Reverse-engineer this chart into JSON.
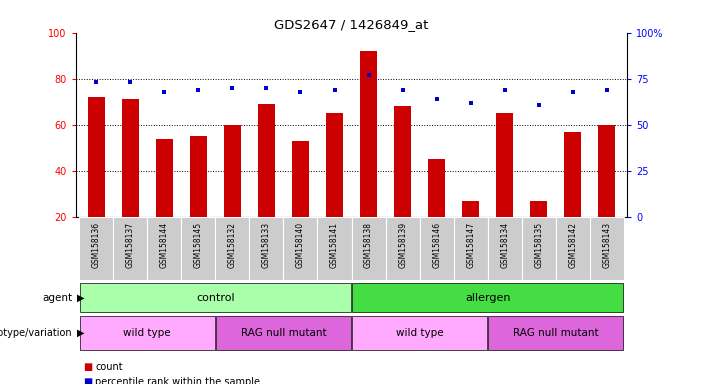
{
  "title": "GDS2647 / 1426849_at",
  "samples": [
    "GSM158136",
    "GSM158137",
    "GSM158144",
    "GSM158145",
    "GSM158132",
    "GSM158133",
    "GSM158140",
    "GSM158141",
    "GSM158138",
    "GSM158139",
    "GSM158146",
    "GSM158147",
    "GSM158134",
    "GSM158135",
    "GSM158142",
    "GSM158143"
  ],
  "counts": [
    72,
    71,
    54,
    55,
    60,
    69,
    53,
    65,
    92,
    68,
    45,
    27,
    65,
    27,
    57,
    60
  ],
  "percentiles": [
    73,
    73,
    68,
    69,
    70,
    70,
    68,
    69,
    77,
    69,
    64,
    62,
    69,
    61,
    68,
    69
  ],
  "bar_color": "#cc0000",
  "dot_color": "#0000cc",
  "y_min": 20,
  "y_max": 100,
  "y_ticks": [
    20,
    40,
    60,
    80,
    100
  ],
  "y2_ticks": [
    0,
    25,
    50,
    75,
    100
  ],
  "y2_labels": [
    "0",
    "25",
    "50",
    "75",
    "100%"
  ],
  "grid_lines": [
    40,
    60,
    80
  ],
  "agent_spans": [
    {
      "text": "control",
      "start": 0,
      "end": 7,
      "color": "#aaffaa"
    },
    {
      "text": "allergen",
      "start": 8,
      "end": 15,
      "color": "#44dd44"
    }
  ],
  "geno_spans": [
    {
      "text": "wild type",
      "start": 0,
      "end": 3,
      "color": "#ffaaff"
    },
    {
      "text": "RAG null mutant",
      "start": 4,
      "end": 7,
      "color": "#dd66dd"
    },
    {
      "text": "wild type",
      "start": 8,
      "end": 11,
      "color": "#ffaaff"
    },
    {
      "text": "RAG null mutant",
      "start": 12,
      "end": 15,
      "color": "#dd66dd"
    }
  ],
  "legend_count_label": "count",
  "legend_pct_label": "percentile rank within the sample",
  "label_agent": "agent",
  "label_geno": "genotype/variation",
  "tick_bg_color": "#cccccc",
  "bar_width": 0.5
}
